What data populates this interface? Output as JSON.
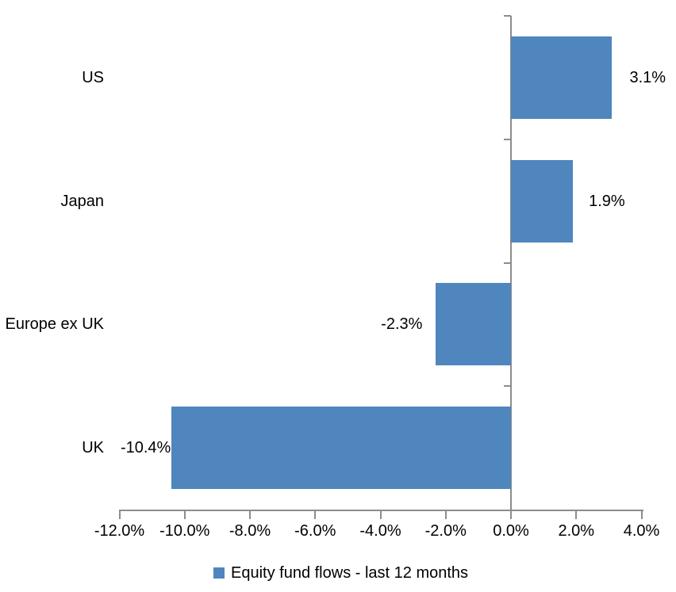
{
  "chart_data": {
    "type": "bar",
    "orientation": "horizontal",
    "title": "",
    "categories": [
      "US",
      "Japan",
      "Europe ex UK",
      "UK"
    ],
    "series": [
      {
        "name": "Equity fund flows - last 12 months",
        "values": [
          3.1,
          1.9,
          -2.3,
          -10.4
        ],
        "value_labels": [
          "3.1%",
          "1.9%",
          "-2.3%",
          "-10.4%"
        ]
      }
    ],
    "xlabel": "",
    "ylabel": "",
    "xlim": [
      -12,
      4
    ],
    "x_tick_values": [
      -12,
      -10,
      -8,
      -6,
      -4,
      -2,
      0,
      2,
      4
    ],
    "x_tick_labels": [
      "-12.0%",
      "-10.0%",
      "-8.0%",
      "-6.0%",
      "-4.0%",
      "-2.0%",
      "0.0%",
      "2.0%",
      "4.0%"
    ],
    "grid": false,
    "legend": {
      "position": "bottom-center",
      "label": "Equity fund flows - last 12 months"
    },
    "colors": {
      "bar": "#4E86BD",
      "axis": "#8C8C8C",
      "text": "#000000",
      "background": "#FFFFFF"
    }
  }
}
